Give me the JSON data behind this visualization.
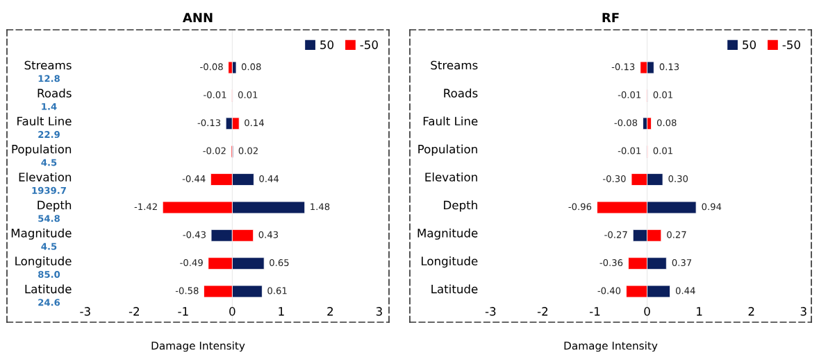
{
  "chart_data": [
    {
      "type": "bar",
      "orientation": "horizontal",
      "title": "ANN",
      "xlabel": "Damage Intensity",
      "categories": [
        "Streams",
        "Roads",
        "Fault Line",
        "Population",
        "Elevation",
        "Depth",
        "Magnitude",
        "Longitude",
        "Latitude"
      ],
      "series": [
        {
          "name": "50",
          "color": "#0b1f5c",
          "values": [
            0.08,
            0.01,
            -0.13,
            0.02,
            0.44,
            1.48,
            -0.43,
            0.65,
            0.61
          ]
        },
        {
          "name": "-50",
          "color": "#ff0000",
          "values": [
            -0.08,
            -0.01,
            0.14,
            -0.02,
            -0.44,
            -1.42,
            0.43,
            -0.49,
            -0.58
          ]
        }
      ],
      "annotations": [
        "12.8",
        "1.4",
        "22.9",
        "4.5",
        "1939.7",
        "54.8",
        "4.5",
        "85.0",
        "24.6"
      ],
      "xlim": [
        -4.6,
        3.2
      ],
      "xticks": [
        -3,
        -2,
        -1,
        0,
        1,
        2,
        3
      ],
      "ref_lines": [
        {
          "axis": "x",
          "value": 0,
          "color": "#e8e8e8"
        }
      ],
      "stacked": true,
      "data_labels": true,
      "legend": "top right",
      "grid": false
    },
    {
      "type": "bar",
      "orientation": "horizontal",
      "title": "RF",
      "xlabel": "Damage Intensity",
      "categories": [
        "Streams",
        "Roads",
        "Fault Line",
        "Population",
        "Elevation",
        "Depth",
        "Magnitude",
        "Longitude",
        "Latitude"
      ],
      "series": [
        {
          "name": "50",
          "color": "#0b1f5c",
          "values": [
            0.13,
            0.01,
            -0.08,
            -0.01,
            0.3,
            0.94,
            -0.27,
            0.37,
            0.44
          ],
          "value_labels": [
            "0.13",
            "0.01",
            "-0.08",
            "-0.01",
            "0.30",
            "0.94",
            "-0.27",
            "0.37",
            "0.44"
          ]
        },
        {
          "name": "-50",
          "color": "#ff0000",
          "values": [
            -0.13,
            -0.01,
            0.08,
            0.01,
            -0.3,
            -0.96,
            0.27,
            -0.36,
            -0.4
          ],
          "value_labels": [
            "-0.13",
            "-0.01",
            "0.08",
            "0.01",
            "-0.30",
            "-0.96",
            "0.27",
            "-0.36",
            "-0.40"
          ]
        }
      ],
      "xlim": [
        -4.55,
        3.15
      ],
      "xticks": [
        -3,
        -2,
        -1,
        0,
        1,
        2,
        3
      ],
      "ref_lines": [
        {
          "axis": "x",
          "value": 0,
          "color": "#e8e8e8"
        }
      ],
      "stacked": true,
      "legend": "top right",
      "grid": false
    }
  ]
}
